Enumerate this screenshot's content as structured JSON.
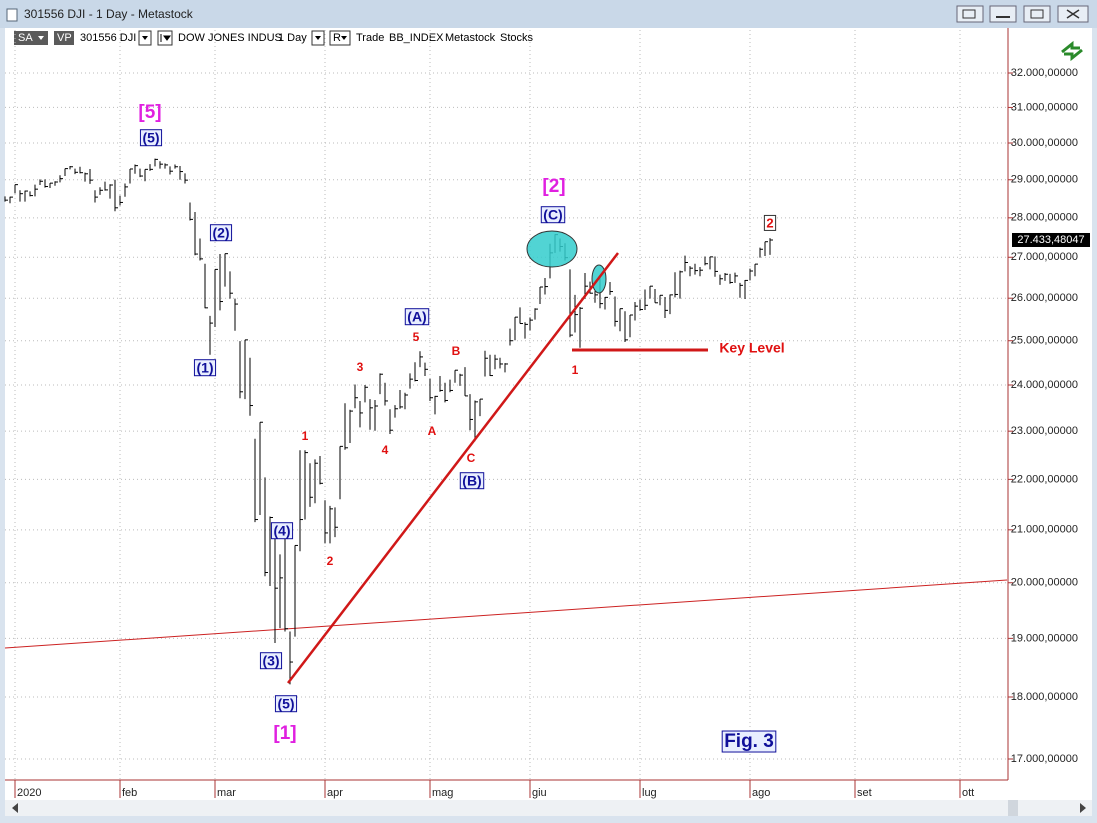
{
  "window": {
    "title": "301556 DJI - 1 Day - Metastock"
  },
  "toolbar": {
    "style": "SA",
    "vp": "VP",
    "symbol": "301556 DJI",
    "name": "DOW JONES INDUS",
    "period": "1 Day",
    "r_button": "R",
    "mode": "Trade",
    "source": "BB_INDEX",
    "provider": "Metastock",
    "group": "Stocks"
  },
  "chart_data": {
    "type": "ohlc",
    "color": "#000000",
    "log_scale": true,
    "grid": true,
    "high": [
      28560,
      28550,
      28870,
      28720,
      28710,
      28690,
      28870,
      29010,
      29010,
      28910,
      28960,
      29120,
      29300,
      29370,
      29300,
      29350,
      29190,
      29290,
      28720,
      28800,
      28950,
      28880,
      29000,
      28580,
      28900,
      29290,
      29410,
      29300,
      29280,
      29420,
      29570,
      29500,
      29440,
      29360,
      29410,
      29370,
      29170,
      28400,
      28150,
      27470,
      26840,
      25580,
      26700,
      27080,
      27090,
      26650,
      25990,
      24990,
      25020,
      24610,
      22840,
      23190,
      22040,
      21260,
      20930,
      20530,
      20850,
      19120,
      20700,
      22600,
      22600,
      22330,
      22410,
      22480,
      21580,
      21470,
      21440,
      22680,
      23600,
      23460,
      24010,
      23650,
      24000,
      23690,
      23670,
      24260,
      24050,
      23470,
      23560,
      23890,
      23830,
      24260,
      24510,
      24760,
      24500,
      24140,
      23760,
      24200,
      24050,
      24120,
      24330,
      24250,
      24400,
      23800,
      23660,
      23690,
      24770,
      24680,
      24680,
      24610,
      24490,
      25280,
      25550,
      25780,
      25430,
      25540,
      25760,
      26270,
      26490,
      27340,
      27580,
      27470,
      27350,
      26700,
      26080,
      25790,
      26610,
      26400,
      26170,
      26510,
      26030,
      26390,
      26040,
      25750,
      25690,
      25600,
      25910,
      25970,
      26210,
      26290,
      26220,
      26070,
      26030,
      26090,
      26630,
      26670,
      27040,
      26780,
      26840,
      26760,
      27020,
      27010,
      27020,
      26570,
      26610,
      26590,
      26620,
      26370,
      26440,
      26720,
      26830,
      27240,
      27390,
      27480
    ],
    "low": [
      28420,
      28380,
      28640,
      28420,
      28420,
      28560,
      28560,
      28860,
      28790,
      28780,
      28840,
      28930,
      29100,
      29280,
      29150,
      29170,
      28950,
      28890,
      28400,
      28600,
      28710,
      28500,
      28170,
      28320,
      28550,
      28900,
      29160,
      29070,
      28960,
      29240,
      29360,
      29300,
      29300,
      29140,
      29300,
      29000,
      28900,
      27930,
      27050,
      26920,
      25760,
      24680,
      25320,
      25710,
      26280,
      25990,
      25230,
      23710,
      23690,
      23330,
      21150,
      21290,
      20120,
      19940,
      18920,
      19180,
      19120,
      18210,
      19030,
      20590,
      21200,
      21450,
      21520,
      21900,
      20740,
      20740,
      20860,
      21600,
      22610,
      22750,
      23490,
      23080,
      23620,
      23030,
      23010,
      23800,
      23550,
      22940,
      23290,
      23480,
      23470,
      23920,
      24080,
      24400,
      24200,
      23650,
      23360,
      23850,
      23620,
      23840,
      24050,
      23980,
      23760,
      23020,
      22790,
      23320,
      24190,
      24200,
      24350,
      24370,
      24280,
      24890,
      25010,
      25400,
      25050,
      25240,
      25490,
      25860,
      26090,
      26480,
      27110,
      27140,
      26920,
      25080,
      25190,
      24840,
      25990,
      26110,
      25890,
      25760,
      25730,
      26080,
      25330,
      25220,
      24970,
      25080,
      25470,
      25700,
      25720,
      25990,
      25890,
      25830,
      25530,
      25620,
      26020,
      25990,
      26650,
      26530,
      26570,
      26530,
      26800,
      26700,
      26520,
      26320,
      26420,
      26350,
      26370,
      26010,
      25980,
      26430,
      26530,
      26990,
      27030,
      27060
    ],
    "close": [
      28460,
      28540,
      28870,
      28630,
      28700,
      28580,
      28750,
      28960,
      28820,
      28910,
      28940,
      29030,
      29300,
      29350,
      29200,
      29190,
      29160,
      28990,
      28540,
      28720,
      28730,
      28860,
      28260,
      28400,
      28810,
      29290,
      29380,
      29100,
      29280,
      29280,
      29550,
      29420,
      29400,
      29230,
      29350,
      29220,
      28990,
      27960,
      27080,
      26960,
      25770,
      25410,
      26700,
      25920,
      27090,
      26120,
      25860,
      23850,
      25020,
      23550,
      21200,
      23190,
      20190,
      21240,
      19900,
      20090,
      19170,
      18590,
      20700,
      21200,
      22550,
      21640,
      22330,
      21920,
      20940,
      21410,
      21050,
      22680,
      22650,
      23430,
      23720,
      23390,
      23950,
      23500,
      23540,
      24240,
      23650,
      23020,
      23480,
      23520,
      23780,
      24130,
      24100,
      24630,
      24350,
      23720,
      23750,
      23880,
      23660,
      23880,
      24330,
      24220,
      23760,
      23250,
      23630,
      23690,
      24600,
      24210,
      24580,
      24470,
      24470,
      25000,
      25550,
      25400,
      25380,
      25480,
      25740,
      26270,
      26280,
      27110,
      27570,
      27270,
      26990,
      25130,
      25610,
      25760,
      26290,
      26120,
      26080,
      25870,
      26020,
      26160,
      25450,
      25750,
      25020,
      25600,
      25810,
      25730,
      25830,
      26290,
      25890,
      26070,
      25710,
      26080,
      26090,
      26640,
      26870,
      26730,
      26670,
      26680,
      26840,
      27010,
      26650,
      26470,
      26580,
      26380,
      26540,
      26310,
      26430,
      26660,
      26830,
      27200,
      27390,
      27433.48047
    ],
    "xlim": [
      0,
      200.4
    ],
    "xticks": [
      {
        "value": 2,
        "label": "2020"
      },
      {
        "value": 23,
        "label": "feb"
      },
      {
        "value": 42,
        "label": "mar"
      },
      {
        "value": 64,
        "label": "apr"
      },
      {
        "value": 85,
        "label": "mag"
      },
      {
        "value": 105,
        "label": "giu"
      },
      {
        "value": 127,
        "label": "lug"
      },
      {
        "value": 149,
        "label": "ago"
      },
      {
        "value": 170,
        "label": "set"
      },
      {
        "value": 191,
        "label": "ott"
      }
    ],
    "ylim": [
      16674,
      32686
    ],
    "yticks": [
      {
        "value": 17000,
        "label": "17.000,00000"
      },
      {
        "value": 18000,
        "label": "18.000,00000"
      },
      {
        "value": 19000,
        "label": "19.000,00000"
      },
      {
        "value": 20000,
        "label": "20.000,00000"
      },
      {
        "value": 21000,
        "label": "21.000,00000"
      },
      {
        "value": 22000,
        "label": "22.000,00000"
      },
      {
        "value": 23000,
        "label": "23.000,00000"
      },
      {
        "value": 24000,
        "label": "24.000,00000"
      },
      {
        "value": 25000,
        "label": "25.000,00000"
      },
      {
        "value": 26000,
        "label": "26.000,00000"
      },
      {
        "value": 27000,
        "label": "27.000,00000"
      },
      {
        "value": 28000,
        "label": "28.000,00000"
      },
      {
        "value": 29000,
        "label": "29.000,00000"
      },
      {
        "value": 30000,
        "label": "30.000,00000"
      },
      {
        "value": 31000,
        "label": "31.000,00000"
      },
      {
        "value": 32000,
        "label": "32.000,00000"
      }
    ],
    "last_value": {
      "value": 27433.48047,
      "label": "27.433,48047"
    },
    "annotations": [
      "[5]",
      "(5)",
      "(2)",
      "(1)",
      "(4)",
      "(3)",
      "(5)",
      "[1]",
      "1",
      "2",
      "3",
      "4",
      "5",
      "(A)",
      "A",
      "B",
      "C",
      "(B)",
      "[2]",
      "(C)",
      "1",
      "Key Level",
      "2",
      "Fig. 3"
    ]
  }
}
